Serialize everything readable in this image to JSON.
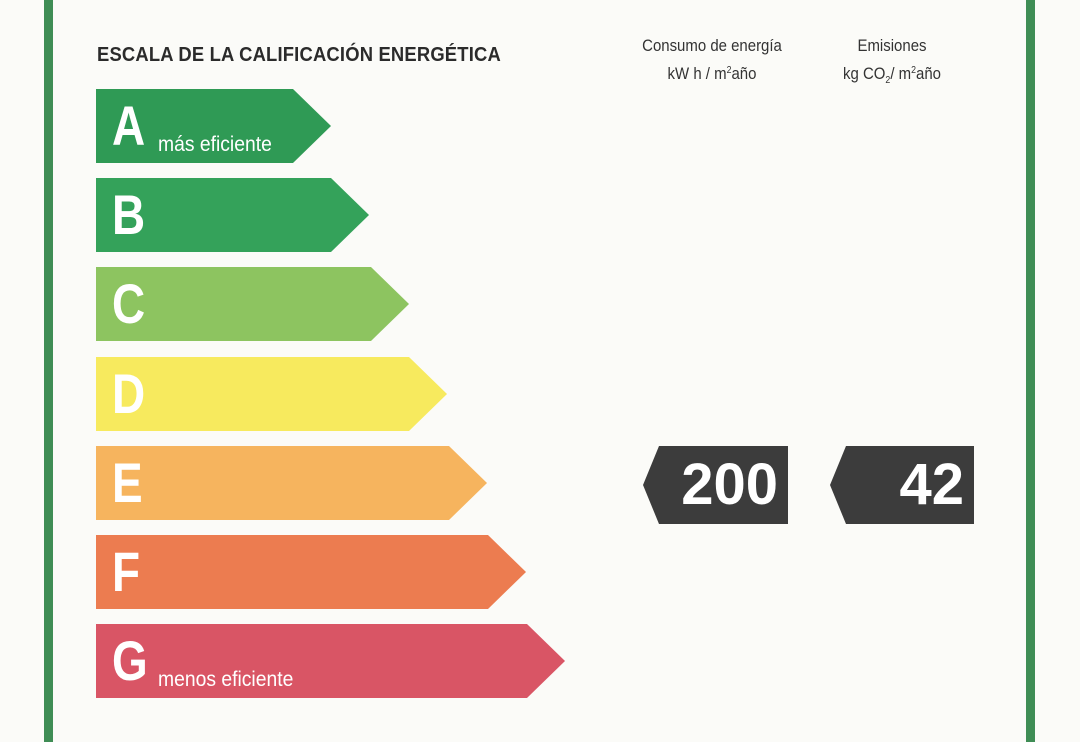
{
  "label": {
    "title": "ESCALA DE LA CALIFICACIÓN ENERGÉTICA",
    "columns": {
      "consumo": {
        "line1": "Consumo de energía",
        "line2_pre": "kW h / m",
        "line2_sup": "2",
        "line2_post": "año"
      },
      "emisiones": {
        "line1": "Emisiones",
        "line2_pre": "kg CO",
        "line2_sub": "2",
        "line2_mid": "/ m",
        "line2_sup": "2",
        "line2_post": "año"
      }
    },
    "bands": [
      {
        "letter": "A",
        "label": "más eficiente",
        "color": "#2f9a55"
      },
      {
        "letter": "B",
        "label": "",
        "color": "#34a25a"
      },
      {
        "letter": "C",
        "label": "",
        "color": "#8dc460"
      },
      {
        "letter": "D",
        "label": "",
        "color": "#f7ea5e"
      },
      {
        "letter": "E",
        "label": "",
        "color": "#f6b45e"
      },
      {
        "letter": "F",
        "label": "",
        "color": "#ec7c50"
      },
      {
        "letter": "G",
        "label": "menos eficiente",
        "color": "#d95565"
      }
    ],
    "values": {
      "consumo": "200",
      "emisiones": "42"
    }
  }
}
